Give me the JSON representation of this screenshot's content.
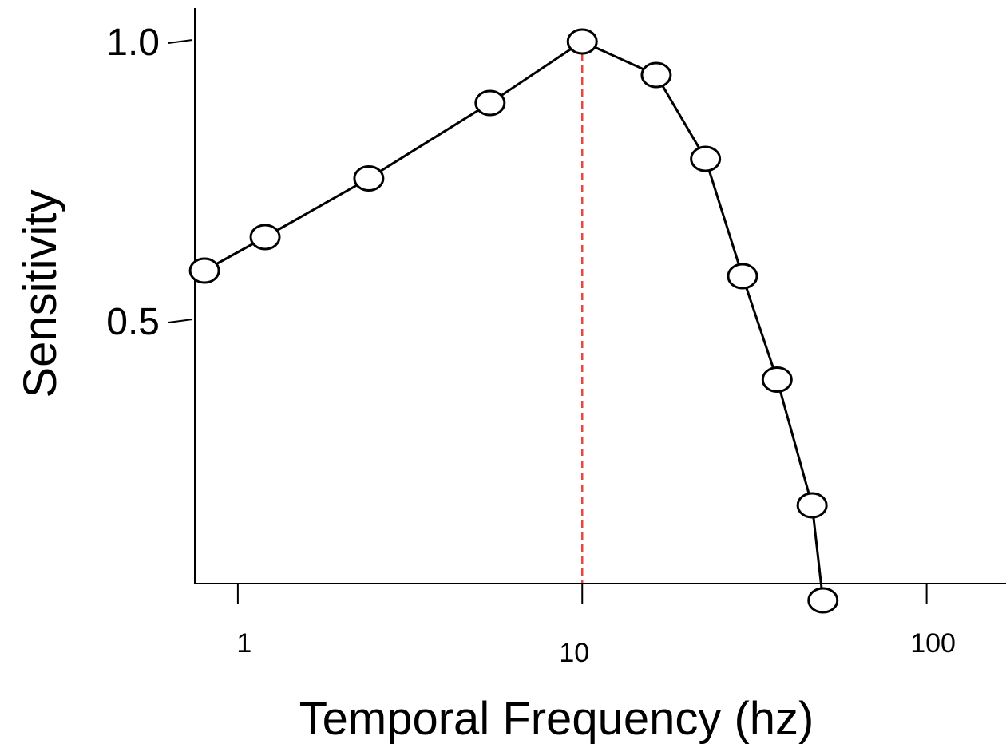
{
  "chart_data": {
    "type": "line",
    "title": "",
    "xlabel": "Temporal Frequency (hz)",
    "ylabel": "Sensitivity",
    "x_scale": "log",
    "xlim": [
      0.75,
      170
    ],
    "ylim": [
      0.03,
      1.06
    ],
    "x_ticks": [
      {
        "value": 1,
        "label": "1"
      },
      {
        "value": 10,
        "label": "10"
      },
      {
        "value": 100,
        "label": "100"
      }
    ],
    "y_ticks": [
      {
        "value": 0.5,
        "label": "0.5"
      },
      {
        "value": 1.0,
        "label": "1.0"
      }
    ],
    "grid": false,
    "legend": "none",
    "marker": "open-circle",
    "series": [
      {
        "x": [
          0.8,
          1.2,
          2.4,
          5.4,
          10,
          16.4,
          22.8,
          29.2,
          36.8,
          46.5,
          50
        ],
        "y": [
          0.59,
          0.65,
          0.755,
          0.89,
          1.0,
          0.94,
          0.79,
          0.58,
          0.395,
          0.17,
          0.0
        ]
      }
    ],
    "reference_line": {
      "orientation": "vertical",
      "x": 10,
      "style": "dashed"
    },
    "colors": {
      "line": "#000000",
      "marker_fill": "#ffffff",
      "reference_line": "#e8473f"
    }
  }
}
